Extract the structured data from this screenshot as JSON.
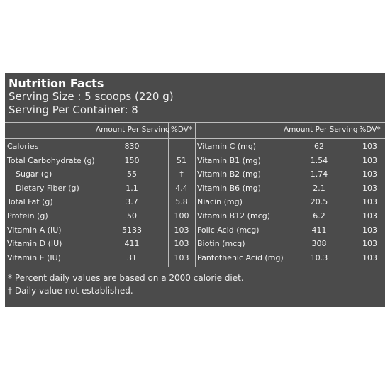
{
  "header": {
    "title": "Nutrition Facts",
    "serving_size": "Serving Size : 5 scoops (220 g)",
    "servings_per_container": "Serving Per Container: 8"
  },
  "table": {
    "columns": [
      "Amount Per Serving",
      "%DV*",
      "Amount Per Serving",
      "%DV*"
    ],
    "rows": [
      {
        "left": {
          "name": "Calories",
          "amount": "830"
        },
        "right": {
          "name": "Vitamin C (mg)",
          "amount": "62",
          "dv": "103"
        }
      },
      {
        "left": {
          "name": "Total Carbohydrate (g)",
          "amount": "150",
          "dv": "51"
        },
        "right": {
          "name": "Vitamin B1 (mg)",
          "amount": "1.54",
          "dv": "103"
        }
      },
      {
        "left": {
          "name": "Sugar (g)",
          "amount": "55",
          "dv": "†",
          "indent": true
        },
        "right": {
          "name": "Vitamin B2 (mg)",
          "amount": "1.74",
          "dv": "103"
        }
      },
      {
        "left": {
          "name": "Dietary Fiber (g)",
          "amount": "1.1",
          "dv": "4.4",
          "indent": true
        },
        "right": {
          "name": "Vitamin B6 (mg)",
          "amount": "2.1",
          "dv": "103"
        }
      },
      {
        "left": {
          "name": "Total Fat (g)",
          "amount": "3.7",
          "dv": "5.8"
        },
        "right": {
          "name": "Niacin (mg)",
          "amount": "20.5",
          "dv": "103"
        }
      },
      {
        "left": {
          "name": "Protein (g)",
          "amount": "50",
          "dv": "100"
        },
        "right": {
          "name": "Vitamin B12 (mcg)",
          "amount": "6.2",
          "dv": "103"
        }
      },
      {
        "left": {
          "name": "Vitamin A (IU)",
          "amount": "5133",
          "dv": "103"
        },
        "right": {
          "name": "Folic Acid (mcg)",
          "amount": "411",
          "dv": "103"
        }
      },
      {
        "left": {
          "name": "Vitamin D (IU)",
          "amount": "411",
          "dv": "103"
        },
        "right": {
          "name": "Biotin (mcg)",
          "amount": "308",
          "dv": "103"
        }
      },
      {
        "left": {
          "name": "Vitamin E (IU)",
          "amount": "31",
          "dv": "103"
        },
        "right": {
          "name": "Pantothenic Acid (mg)",
          "amount": "10.3",
          "dv": "103"
        }
      }
    ]
  },
  "footnotes": [
    "* Percent daily values are based on a 2000 calorie diet.",
    "† Daily value not established."
  ]
}
